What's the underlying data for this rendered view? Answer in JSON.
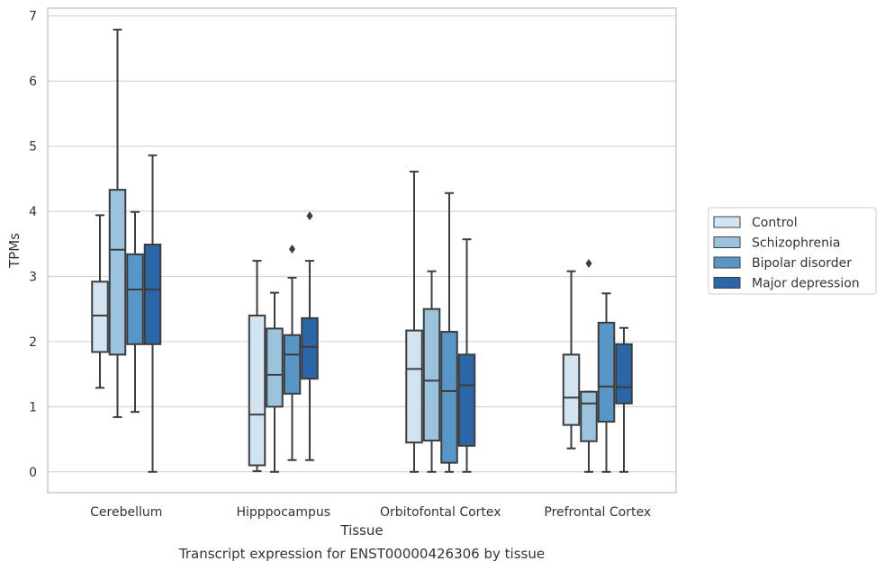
{
  "chart_data": {
    "type": "box",
    "title": "Transcript expression for ENST00000426306 by tissue",
    "xlabel": "Tissue",
    "ylabel": "TPMs",
    "ylim": [
      -0.32,
      7.12
    ],
    "yticks": [
      "0",
      "1",
      "2",
      "3",
      "4",
      "5",
      "6",
      "7"
    ],
    "grid": "horizontal",
    "legend_position": "right",
    "categories": [
      "Cerebellum",
      "Hipppocampus",
      "Orbitofontal Cortex",
      "Prefrontal Cortex"
    ],
    "series": [
      {
        "name": "Control",
        "color": "#d2e3f2",
        "boxes": [
          {
            "whislo": 1.29,
            "q1": 1.84,
            "med": 2.4,
            "q3": 2.92,
            "whishi": 3.94,
            "fliers": []
          },
          {
            "whislo": 0.01,
            "q1": 0.1,
            "med": 0.88,
            "q3": 2.4,
            "whishi": 3.24,
            "fliers": []
          },
          {
            "whislo": 0.0,
            "q1": 0.45,
            "med": 1.58,
            "q3": 2.17,
            "whishi": 4.61,
            "fliers": []
          },
          {
            "whislo": 0.36,
            "q1": 0.72,
            "med": 1.14,
            "q3": 1.8,
            "whishi": 3.08,
            "fliers": []
          }
        ]
      },
      {
        "name": "Schizophrenia",
        "color": "#9ac4de",
        "boxes": [
          {
            "whislo": 0.84,
            "q1": 1.8,
            "med": 3.41,
            "q3": 4.33,
            "whishi": 6.79,
            "fliers": []
          },
          {
            "whislo": 0.0,
            "q1": 1.0,
            "med": 1.49,
            "q3": 2.2,
            "whishi": 2.75,
            "fliers": []
          },
          {
            "whislo": 0.0,
            "q1": 0.48,
            "med": 1.4,
            "q3": 2.5,
            "whishi": 3.08,
            "fliers": []
          },
          {
            "whislo": 0.0,
            "q1": 0.47,
            "med": 1.05,
            "q3": 1.23,
            "whishi": 1.23,
            "fliers": [
              3.2
            ]
          }
        ]
      },
      {
        "name": "Bipolar disorder",
        "color": "#5796c6",
        "boxes": [
          {
            "whislo": 0.92,
            "q1": 1.96,
            "med": 2.8,
            "q3": 3.34,
            "whishi": 3.99,
            "fliers": []
          },
          {
            "whislo": 0.18,
            "q1": 1.2,
            "med": 1.8,
            "q3": 2.1,
            "whishi": 2.98,
            "fliers": [
              3.42
            ]
          },
          {
            "whislo": 0.0,
            "q1": 0.14,
            "med": 1.24,
            "q3": 2.15,
            "whishi": 4.28,
            "fliers": []
          },
          {
            "whislo": 0.0,
            "q1": 0.77,
            "med": 1.31,
            "q3": 2.29,
            "whishi": 2.74,
            "fliers": []
          }
        ]
      },
      {
        "name": "Major depression",
        "color": "#2b67a7",
        "boxes": [
          {
            "whislo": 0.0,
            "q1": 1.96,
            "med": 2.8,
            "q3": 3.49,
            "whishi": 4.86,
            "fliers": []
          },
          {
            "whislo": 0.18,
            "q1": 1.43,
            "med": 1.92,
            "q3": 2.36,
            "whishi": 3.24,
            "fliers": [
              3.93
            ]
          },
          {
            "whislo": 0.0,
            "q1": 0.4,
            "med": 1.33,
            "q3": 1.8,
            "whishi": 3.57,
            "fliers": []
          },
          {
            "whislo": 0.0,
            "q1": 1.05,
            "med": 1.3,
            "q3": 1.96,
            "whishi": 2.21,
            "fliers": []
          }
        ]
      }
    ]
  }
}
